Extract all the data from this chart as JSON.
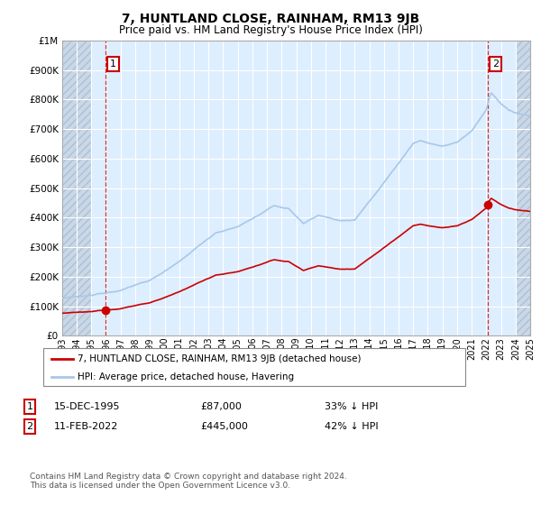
{
  "title": "7, HUNTLAND CLOSE, RAINHAM, RM13 9JB",
  "subtitle": "Price paid vs. HM Land Registry's House Price Index (HPI)",
  "ylim": [
    0,
    1000000
  ],
  "ytick_vals": [
    0,
    100000,
    200000,
    300000,
    400000,
    500000,
    600000,
    700000,
    800000,
    900000,
    1000000
  ],
  "hpi_color": "#a8c8e8",
  "price_color": "#cc0000",
  "bg_light": "#ddeeff",
  "bg_hatch_color": "#c8d8e8",
  "grid_color": "#ffffff",
  "annotation1": {
    "label": "1",
    "date": "15-DEC-1995",
    "price": 87000,
    "hpi_pct": "33% ↓ HPI"
  },
  "annotation2": {
    "label": "2",
    "date": "11-FEB-2022",
    "price": 445000,
    "hpi_pct": "42% ↓ HPI"
  },
  "legend_line1": "7, HUNTLAND CLOSE, RAINHAM, RM13 9JB (detached house)",
  "legend_line2": "HPI: Average price, detached house, Havering",
  "footer": "Contains HM Land Registry data © Crown copyright and database right 2024.\nThis data is licensed under the Open Government Licence v3.0.",
  "sale1_x": 1995.96,
  "sale1_y": 87000,
  "sale2_x": 2022.11,
  "sale2_y": 445000,
  "xmin": 1993,
  "xmax": 2025,
  "xtick_years": [
    1993,
    1994,
    1995,
    1996,
    1997,
    1998,
    1999,
    2000,
    2001,
    2002,
    2003,
    2004,
    2005,
    2006,
    2007,
    2008,
    2009,
    2010,
    2011,
    2012,
    2013,
    2014,
    2015,
    2016,
    2017,
    2018,
    2019,
    2020,
    2021,
    2022,
    2023,
    2024,
    2025
  ]
}
